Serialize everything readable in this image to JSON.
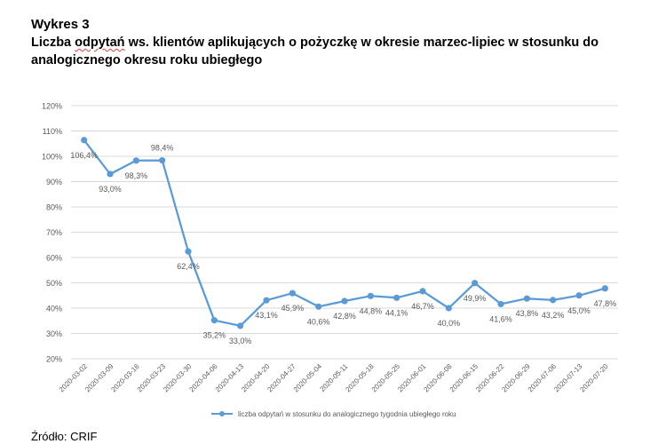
{
  "header": {
    "label": "Wykres 3",
    "title_word1": "Liczba",
    "title_word2": "odpytań",
    "title_rest": "ws. klientów aplikujących o pożyczkę w okresie marzec-lipiec w stosunku do analogicznego okresu roku ubiegłego"
  },
  "source": "Źródło: CRIF",
  "colors": {
    "line": "#5b9bd5",
    "grid": "#d9d9d9",
    "text": "#595959"
  },
  "chart_data": {
    "type": "line",
    "title": "",
    "xlabel": "",
    "ylabel": "",
    "ylim": [
      0.2,
      1.2
    ],
    "yticks": [
      "20%",
      "30%",
      "40%",
      "50%",
      "60%",
      "70%",
      "80%",
      "90%",
      "100%",
      "110%",
      "120%"
    ],
    "grid": true,
    "legend_position": "bottom",
    "x": [
      "2020-03-02",
      "2020-03-09",
      "2020-03-16",
      "2020-03-23",
      "2020-03-30",
      "2020-04-06",
      "2020-04-13",
      "2020-04-20",
      "2020-04-27",
      "2020-05-04",
      "2020-05-11",
      "2020-05-18",
      "2020-05-25",
      "2020-06-01",
      "2020-06-08",
      "2020-06-15",
      "2020-06-22",
      "2020-06-29",
      "2020-07-06",
      "2020-07-13",
      "2020-07-20"
    ],
    "series": [
      {
        "name": "liczba odpytań w stosunku do analogicznego tygodnia ubiegłego roku",
        "values": [
          1.064,
          0.93,
          0.983,
          0.984,
          0.624,
          0.352,
          0.33,
          0.431,
          0.459,
          0.406,
          0.428,
          0.448,
          0.441,
          0.467,
          0.4,
          0.499,
          0.416,
          0.438,
          0.432,
          0.45,
          0.478
        ],
        "labels": [
          "106,4%",
          "93,0%",
          "98,3%",
          "98,4%",
          "62,4%",
          "35,2%",
          "33,0%",
          "43,1%",
          "45,9%",
          "40,6%",
          "42,8%",
          "44,8%",
          "44,1%",
          "46,7%",
          "40,0%",
          "49,9%",
          "41,6%",
          "43,8%",
          "43,2%",
          "45,0%",
          "47,8%"
        ]
      }
    ]
  }
}
